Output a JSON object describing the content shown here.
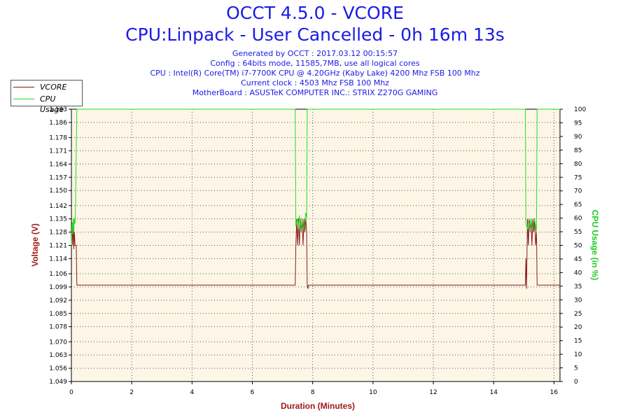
{
  "header": {
    "title": "OCCT 4.5.0 - VCORE",
    "subtitle": "CPU:Linpack - User Cancelled - 0h 16m 13s",
    "info_lines": [
      "Generated by OCCT : 2017.03.12 00:15:57",
      "Config : 64bits mode, 11585,7MB, use all logical cores",
      "CPU : Intel(R) Core(TM) i7-7700K CPU @ 4.20GHz (Kaby Lake) 4200 Mhz FSB 100 Mhz",
      "Current clock : 4503 Mhz FSB 100 Mhz",
      "MotherBoard : ASUSTeK COMPUTER INC.: STRIX Z270G GAMING"
    ]
  },
  "colors": {
    "vcore": "#8b1a1a",
    "cpu_usage": "#22dd22",
    "plot_bg": "#fdf6e6",
    "grid": "#555555",
    "title": "#1a1ae6",
    "axis_title_left": "#a01818",
    "axis_title_right": "#22cc22",
    "axis_title_bottom": "#a01818"
  },
  "chart_data": {
    "type": "line",
    "title": "OCCT 4.5.0 - VCORE",
    "xlabel": "Duration (Minutes)",
    "ylabel": "Voltage (V)",
    "y2label": "CPU Usage (in %)",
    "xlim": [
      0,
      16.2
    ],
    "xticks": [
      "0",
      "2",
      "4",
      "6",
      "8",
      "10",
      "12",
      "14",
      "16"
    ],
    "ylim": [
      1.049,
      1.193
    ],
    "yticks": [
      "1.049",
      "1.056",
      "1.063",
      "1.070",
      "1.078",
      "1.085",
      "1.092",
      "1.099",
      "1.106",
      "1.114",
      "1.121",
      "1.128",
      "1.135",
      "1.142",
      "1.150",
      "1.157",
      "1.164",
      "1.171",
      "1.178",
      "1.186",
      "1.193"
    ],
    "y2lim": [
      0,
      100
    ],
    "y2ticks": [
      "0",
      "5",
      "10",
      "15",
      "20",
      "25",
      "30",
      "35",
      "40",
      "45",
      "50",
      "55",
      "60",
      "65",
      "70",
      "75",
      "80",
      "85",
      "90",
      "95",
      "100"
    ],
    "grid": true,
    "legend_position": "top-left",
    "series": [
      {
        "name": "VCORE",
        "axis": "left",
        "x": [
          0.0,
          0.02,
          0.04,
          0.06,
          0.08,
          0.1,
          0.12,
          0.14,
          0.16,
          0.18,
          0.2,
          0.22,
          7.42,
          7.44,
          7.47,
          7.5,
          7.53,
          7.56,
          7.59,
          7.62,
          7.65,
          7.68,
          7.71,
          7.74,
          7.77,
          7.8,
          7.82,
          7.84,
          7.86,
          7.88,
          15.05,
          15.07,
          15.09,
          15.12,
          15.15,
          15.18,
          15.21,
          15.24,
          15.27,
          15.3,
          15.33,
          15.36,
          15.39,
          15.42,
          15.44,
          15.46,
          16.2
        ],
        "y": [
          1.125,
          1.133,
          1.121,
          1.135,
          1.119,
          1.128,
          1.121,
          1.121,
          1.121,
          1.1,
          1.1,
          1.1,
          1.1,
          1.12,
          1.135,
          1.121,
          1.135,
          1.121,
          1.135,
          1.128,
          1.135,
          1.121,
          1.135,
          1.128,
          1.135,
          1.128,
          1.1,
          1.098,
          1.1,
          1.1,
          1.1,
          1.114,
          1.098,
          1.135,
          1.121,
          1.135,
          1.128,
          1.135,
          1.121,
          1.135,
          1.128,
          1.135,
          1.121,
          1.128,
          1.1,
          1.1,
          1.1
        ]
      },
      {
        "name": "CPU Usage",
        "axis": "right",
        "x": [
          0.0,
          0.02,
          0.04,
          0.06,
          0.08,
          0.1,
          0.12,
          0.14,
          0.16,
          0.18,
          0.2,
          7.42,
          7.44,
          7.47,
          7.5,
          7.53,
          7.56,
          7.59,
          7.62,
          7.65,
          7.68,
          7.71,
          7.74,
          7.77,
          7.8,
          7.82,
          7.84,
          15.05,
          15.07,
          15.09,
          15.12,
          15.15,
          15.18,
          15.21,
          15.24,
          15.27,
          15.3,
          15.33,
          15.36,
          15.39,
          15.42,
          15.44,
          16.2
        ],
        "y": [
          50,
          58,
          54,
          60,
          55,
          60,
          58,
          65,
          85,
          100,
          100,
          100,
          57,
          58,
          60,
          56,
          61,
          58,
          55,
          60,
          57,
          56,
          58,
          62,
          60,
          100,
          100,
          100,
          58,
          57,
          56,
          59,
          58,
          55,
          60,
          57,
          56,
          58,
          60,
          57,
          55,
          100,
          100
        ]
      }
    ]
  }
}
